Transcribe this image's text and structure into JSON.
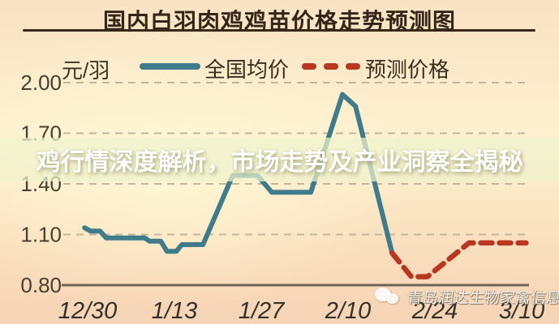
{
  "header": {
    "title": "国内白羽肉鸡鸡苗价格走势预测图"
  },
  "legend": {
    "unit": "元/羽",
    "actual_label": "全国均价",
    "forecast_label": "预测价格"
  },
  "overlay": {
    "headline": "鸡行情深度解析，市场走势及产业洞察全揭秘"
  },
  "watermark": {
    "icon": "wechat-bubbles-icon",
    "text": "青岛润达生物家禽信息"
  },
  "colors": {
    "actual_line": "#3f7c8b",
    "forecast_line": "#b93620",
    "grid_line": "#c2b69f",
    "axis_line": "#6e6557",
    "y_label_text": "#47402f",
    "x_label_text": "#33302a",
    "banner_bg": "rgba(238,243,205,0.72)",
    "banner_text": "#ffffff",
    "background_top": "#f8e2c4",
    "background_mid": "#fdf1cf",
    "background_bottom": "#f6d3b5"
  },
  "chart_data": {
    "type": "line",
    "title": "国内白羽肉鸡鸡苗价格走势预测图",
    "unit": "元/羽",
    "ylim": [
      0.8,
      2.0
    ],
    "grid": "horizontal-dashed",
    "legend_position": "top",
    "y_ticks": [
      {
        "label": "2.00",
        "value": 2.0
      },
      {
        "label": "1.70",
        "value": 1.7
      },
      {
        "label": "1.40",
        "value": 1.4
      },
      {
        "label": "1.10",
        "value": 1.1
      },
      {
        "label": "0.80",
        "value": 0.8
      }
    ],
    "x_ticks": [
      {
        "label": "12/30",
        "day": 0
      },
      {
        "label": "1/13",
        "day": 14
      },
      {
        "label": "1/27",
        "day": 28
      },
      {
        "label": "2/10",
        "day": 42
      },
      {
        "label": "2/24",
        "day": 56
      },
      {
        "label": "3/10",
        "day": 70
      }
    ],
    "series": [
      {
        "name": "全国均价",
        "style": "solid",
        "color": "#3f7c8b",
        "points": [
          [
            -0.5,
            1.14
          ],
          [
            0.5,
            1.12
          ],
          [
            2,
            1.12
          ],
          [
            3,
            1.08
          ],
          [
            9.2,
            1.08
          ],
          [
            10,
            1.06
          ],
          [
            11.8,
            1.06
          ],
          [
            12.8,
            1.0
          ],
          [
            14.3,
            1.0
          ],
          [
            15.2,
            1.04
          ],
          [
            18.6,
            1.04
          ],
          [
            23.4,
            1.45
          ],
          [
            27.4,
            1.45
          ],
          [
            29.7,
            1.35
          ],
          [
            36,
            1.35
          ],
          [
            41.1,
            1.93
          ],
          [
            43.2,
            1.86
          ],
          [
            49.1,
            0.99
          ]
        ]
      },
      {
        "name": "预测价格",
        "style": "dashed",
        "color": "#b93620",
        "points": [
          [
            49.1,
            0.99
          ],
          [
            52.2,
            0.85
          ],
          [
            54.8,
            0.85
          ],
          [
            61.5,
            1.05
          ],
          [
            70.7,
            1.05
          ]
        ]
      }
    ]
  }
}
